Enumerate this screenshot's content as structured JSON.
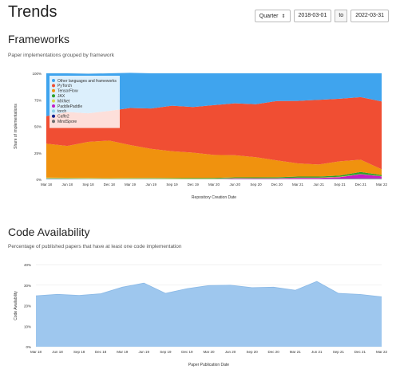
{
  "page": {
    "title": "Trends",
    "granularity": "Quarter",
    "date_from": "2018-03-01",
    "to_label": "to",
    "date_to": "2022-03-31"
  },
  "sections": {
    "frameworks": {
      "title": "Frameworks",
      "subtitle": "Paper implementations grouped by framework"
    },
    "code_availability": {
      "title": "Code Availability",
      "subtitle": "Percentage of published papers that have at least one code implementation"
    }
  },
  "chart_data": [
    {
      "type": "area",
      "stacked": true,
      "x": [
        "Mar 18",
        "Jun 18",
        "Sep 18",
        "Dec 18",
        "Mar 19",
        "Jun 19",
        "Sep 19",
        "Dec 19",
        "Mar 20",
        "Jun 20",
        "Sep 20",
        "Dec 20",
        "Mar 21",
        "Jun 21",
        "Sep 21",
        "Dec 21",
        "Mar 22"
      ],
      "xlabel": "Repository Creation Date",
      "ylabel": "Share of implementations",
      "ylim": [
        0,
        100
      ],
      "yticks": [
        "0%",
        "25%",
        "50%",
        "75%",
        "100%"
      ],
      "legend_position": "top-left",
      "grid": true,
      "series": [
        {
          "name": "MindSpore",
          "color": "#6d6d6d",
          "values": [
            0,
            0,
            0,
            0,
            0,
            0,
            0,
            0,
            0,
            0,
            0,
            0,
            0,
            0,
            0.3,
            0.5,
            0.5
          ]
        },
        {
          "name": "Caffe2",
          "color": "#0b1f8c",
          "values": [
            0.3,
            0.3,
            0.2,
            0.2,
            0.2,
            0.2,
            0.1,
            0.1,
            0.1,
            0.1,
            0.1,
            0.1,
            0.1,
            0.1,
            0.1,
            0.1,
            0.1
          ]
        },
        {
          "name": "torch",
          "color": "#8fd3e8",
          "values": [
            0.5,
            0.4,
            0.4,
            0.3,
            0.3,
            0.3,
            0.2,
            0.2,
            0.2,
            0.2,
            0.2,
            0.2,
            0.2,
            0.2,
            0.2,
            0.2,
            0.2
          ]
        },
        {
          "name": "PaddlePaddle",
          "color": "#c51dc5",
          "values": [
            0,
            0,
            0,
            0,
            0,
            0,
            0,
            0,
            0,
            0.5,
            0.5,
            0.5,
            1,
            1,
            1.5,
            4,
            2
          ]
        },
        {
          "name": "MXNet",
          "color": "#d8d84a",
          "values": [
            0.8,
            0.8,
            0.7,
            0.6,
            0.6,
            0.5,
            0.5,
            0.4,
            0.4,
            0.4,
            0.3,
            0.3,
            0.3,
            0.3,
            0.3,
            0.2,
            0.2
          ]
        },
        {
          "name": "JAX",
          "color": "#2ca02c",
          "values": [
            0,
            0,
            0,
            0,
            0.2,
            0.3,
            0.4,
            0.5,
            0.6,
            0.7,
            0.8,
            0.9,
            1,
            1,
            1.2,
            2,
            1
          ]
        },
        {
          "name": "TensorFlow",
          "color": "#f0920e",
          "values": [
            32,
            30,
            34,
            35.5,
            31,
            27.5,
            25.3,
            24,
            21.7,
            20.8,
            19,
            15.9,
            12.4,
            11.4,
            13.4,
            11.5,
            5.5
          ]
        },
        {
          "name": "PyTorch",
          "color": "#f04e33",
          "values": [
            26,
            32,
            27,
            28,
            35,
            38,
            43,
            43,
            47,
            49,
            50,
            56,
            59,
            61,
            59,
            59,
            64
          ]
        },
        {
          "name": "Other languages and frameworks",
          "color": "#3fa4ee",
          "values": [
            40.4,
            36.5,
            37.3,
            35.4,
            33.2,
            33.2,
            30.5,
            31.8,
            30,
            28.3,
            29.1,
            26.1,
            26,
            25,
            24,
            22.5,
            26.5
          ]
        }
      ]
    },
    {
      "type": "area",
      "x": [
        "Mar 18",
        "Jun 18",
        "Sep 18",
        "Dec 18",
        "Mar 19",
        "Jun 19",
        "Sep 19",
        "Dec 19",
        "Mar 20",
        "Jun 20",
        "Sep 20",
        "Dec 20",
        "Mar 21",
        "Jun 21",
        "Sep 21",
        "Dec 21",
        "Mar 22"
      ],
      "xlabel": "Paper Publication Date",
      "ylabel": "Code Availability",
      "ylim": [
        0,
        40
      ],
      "yticks": [
        "0%",
        "10%",
        "20%",
        "30%",
        "40%"
      ],
      "grid": true,
      "series": [
        {
          "color": "#9ec7ee",
          "values": [
            24.8,
            25.5,
            25,
            25.8,
            29,
            31,
            26,
            28.3,
            29.8,
            30,
            28.8,
            29,
            27.5,
            31.8,
            26,
            25.5,
            24.3
          ]
        }
      ]
    }
  ]
}
